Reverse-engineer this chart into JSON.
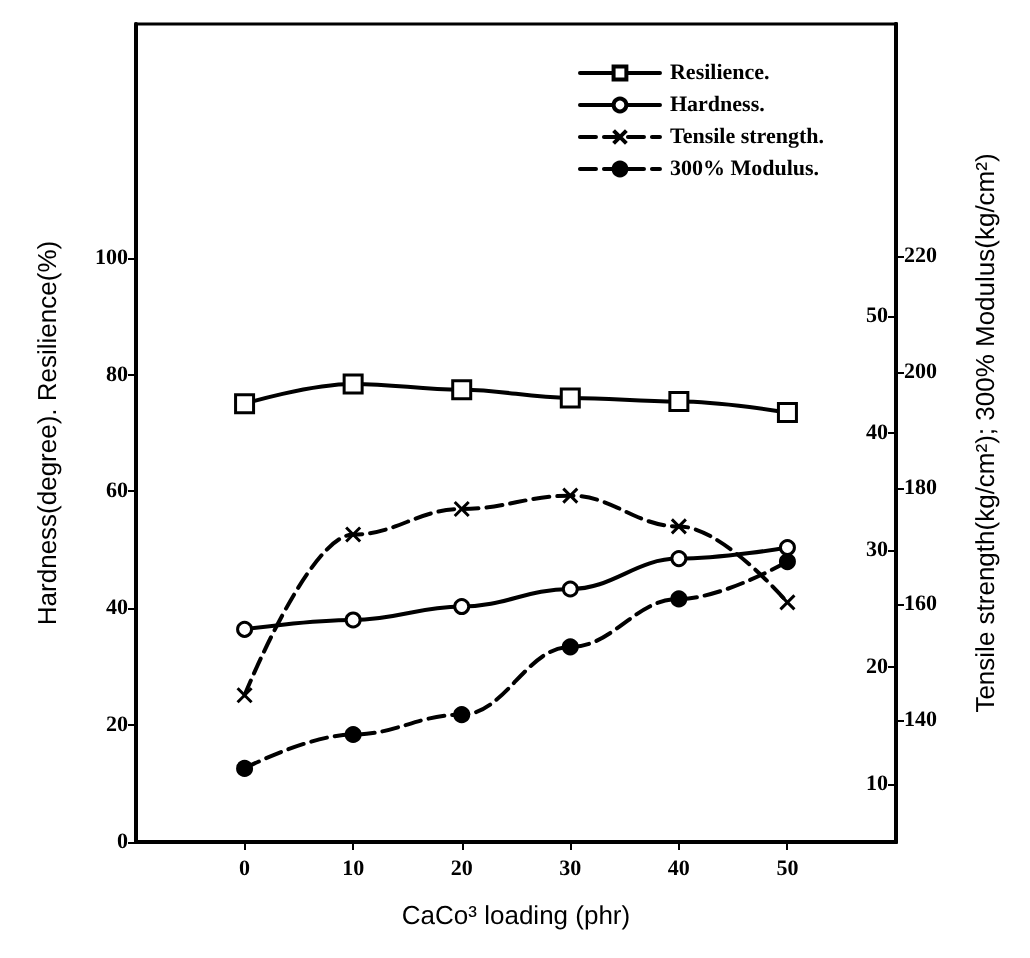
{
  "chart_data": {
    "type": "line",
    "xlabel": "CaCo³ loading (phr)",
    "ylabel": "Hardness(degree). Resilience(%)",
    "y2label": "Tensile strength(kg/cm²); 300% Modulus(kg/cm²)",
    "x": [
      0,
      10,
      20,
      30,
      40,
      50
    ],
    "xlim": [
      -10,
      60
    ],
    "xticks": [
      0,
      10,
      20,
      30,
      40,
      50
    ],
    "ylim": [
      0,
      140
    ],
    "yticks": [
      0,
      20,
      40,
      60,
      80,
      100
    ],
    "y2lim": [
      5,
      75
    ],
    "y2ticks": [
      10,
      20,
      30,
      40,
      50
    ],
    "y3lim": [
      119,
      260
    ],
    "y3ticks": [
      140,
      160,
      180,
      200,
      220
    ],
    "grid": false,
    "legend": "top right",
    "series": [
      {
        "name": "Resilience.",
        "color": "#000000",
        "marker": "square",
        "line_style": "solid",
        "values": [
          75,
          78.4,
          77.4,
          76,
          75.4,
          73.5
        ]
      },
      {
        "name": "Hardness.",
        "color": "#000000",
        "marker": "circle",
        "line_style": "solid",
        "values": [
          36.4,
          38,
          40.3,
          43.3,
          48.5,
          50.4
        ]
      },
      {
        "name": "Tensile strength.",
        "color": "#000000",
        "marker": "cross",
        "line_style": "dashed",
        "axis": "y3",
        "values": [
          144.3,
          172,
          176.4,
          178.7,
          173.4,
          160.3
        ]
      },
      {
        "name": "300% Modulus.",
        "color": "#000000",
        "marker": "circle",
        "line_style": "dashed",
        "axis": "y2",
        "values": [
          11.3,
          14.2,
          15.9,
          21.7,
          25.8,
          29
        ]
      }
    ]
  }
}
